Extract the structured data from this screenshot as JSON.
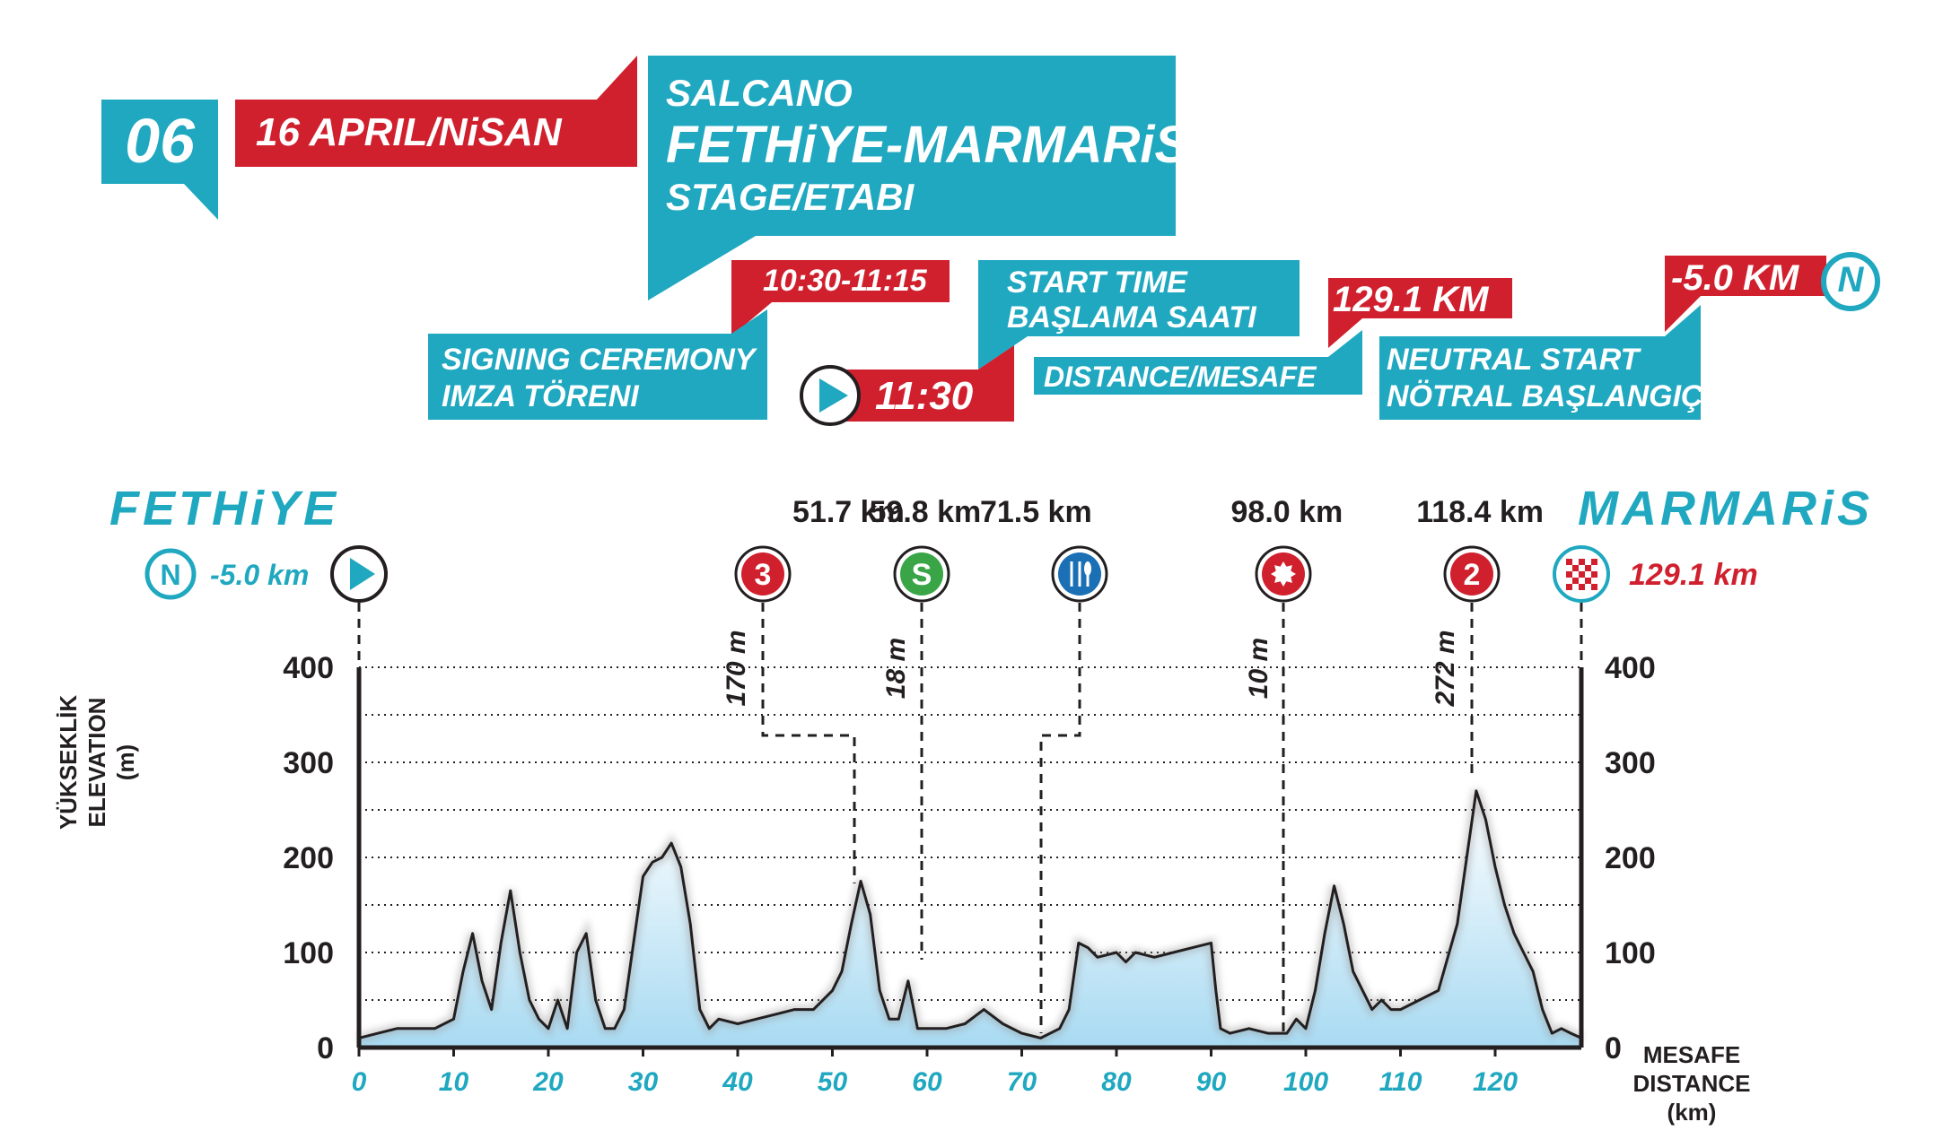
{
  "header": {
    "stage_number": "06",
    "date": "16 APRIL/NiSAN",
    "sponsor": "SALCANO",
    "route": "FETHiYE-MARMARiS",
    "stage_label": "STAGE/ETABI",
    "signing_time": "10:30-11:15",
    "signing_label_1": "SIGNING CEREMONY",
    "signing_label_2": "IMZA TÖRENI",
    "start_label_1": "START TIME",
    "start_label_2": "BAŞLAMA SAATI",
    "start_time": "11:30",
    "distance_value": "129.1 KM",
    "distance_label": "DISTANCE/MESAFE",
    "neutral_value": "-5.0 KM",
    "neutral_icon_letter": "N",
    "neutral_label_1": "NEUTRAL START",
    "neutral_label_2": "NÖTRAL BAŞLANGIÇ"
  },
  "profile": {
    "start_city": "FETHiYE",
    "finish_city": "MARMARiS",
    "neutral_km": "-5.0 km",
    "finish_km": "129.1 km",
    "y_label_1": "YÜKSEKLİK",
    "y_label_2": "ELEVATION",
    "y_label_3": "(m)",
    "x_label_1": "MESAFE",
    "x_label_2": "DISTANCE",
    "x_label_3": "(km)"
  },
  "colors": {
    "teal": "#1fa8c0",
    "red": "#d0202e",
    "green": "#3aa547",
    "blue": "#1a6fb5",
    "dark": "#231f20"
  },
  "chart_data": {
    "type": "area",
    "xlim": [
      0,
      129.1
    ],
    "ylim": [
      0,
      400
    ],
    "x_ticks": [
      0,
      10,
      20,
      30,
      40,
      50,
      60,
      70,
      80,
      90,
      100,
      110,
      120
    ],
    "y_ticks": [
      0,
      100,
      200,
      300,
      400
    ],
    "grid": true,
    "x": [
      0,
      2,
      4,
      6,
      8,
      10,
      11,
      12,
      13,
      14,
      15,
      16,
      17,
      18,
      19,
      20,
      21,
      22,
      23,
      24,
      25,
      26,
      27,
      28,
      29,
      30,
      31,
      32,
      33,
      34,
      35,
      36,
      37,
      38,
      40,
      42,
      44,
      46,
      48,
      50,
      51,
      52,
      53,
      54,
      55,
      56,
      57,
      58,
      59,
      60,
      62,
      64,
      66,
      68,
      70,
      72,
      74,
      75,
      76,
      77,
      78,
      80,
      81,
      82,
      84,
      86,
      88,
      90,
      90.5,
      91,
      92,
      94,
      96,
      98,
      99,
      100,
      101,
      102,
      103,
      104,
      105,
      106,
      107,
      108,
      109,
      110,
      112,
      114,
      116,
      117,
      118,
      119,
      120,
      121,
      122,
      123,
      124,
      125,
      126,
      127,
      128,
      129.1
    ],
    "y": [
      10,
      15,
      20,
      20,
      20,
      30,
      80,
      120,
      70,
      40,
      110,
      165,
      100,
      50,
      30,
      20,
      50,
      20,
      100,
      120,
      50,
      20,
      20,
      40,
      110,
      180,
      195,
      200,
      215,
      190,
      130,
      40,
      20,
      30,
      25,
      30,
      35,
      40,
      40,
      60,
      80,
      130,
      175,
      140,
      60,
      30,
      30,
      70,
      20,
      20,
      20,
      25,
      40,
      25,
      15,
      10,
      20,
      40,
      110,
      105,
      95,
      100,
      90,
      100,
      95,
      100,
      105,
      110,
      60,
      20,
      15,
      20,
      15,
      15,
      30,
      20,
      60,
      120,
      170,
      130,
      80,
      60,
      40,
      50,
      40,
      40,
      50,
      60,
      130,
      200,
      270,
      240,
      190,
      150,
      120,
      100,
      80,
      40,
      15,
      20,
      15,
      10
    ],
    "points": [
      {
        "km_label": "51.7 km",
        "km": 51.7,
        "icon": "3",
        "elevation_label": "170 m",
        "color": "red"
      },
      {
        "km_label": "59.8 km",
        "km": 59.8,
        "icon": "S",
        "elevation_label": "18 m",
        "color": "green"
      },
      {
        "km_label": "71.5 km",
        "km": 71.5,
        "icon": "feed",
        "elevation_label": "",
        "color": "blue"
      },
      {
        "km_label": "98.0 km",
        "km": 98.0,
        "icon": "star",
        "elevation_label": "10 m",
        "color": "red"
      },
      {
        "km_label": "118.4 km",
        "km": 118.4,
        "icon": "2",
        "elevation_label": "272 m",
        "color": "red"
      }
    ]
  }
}
